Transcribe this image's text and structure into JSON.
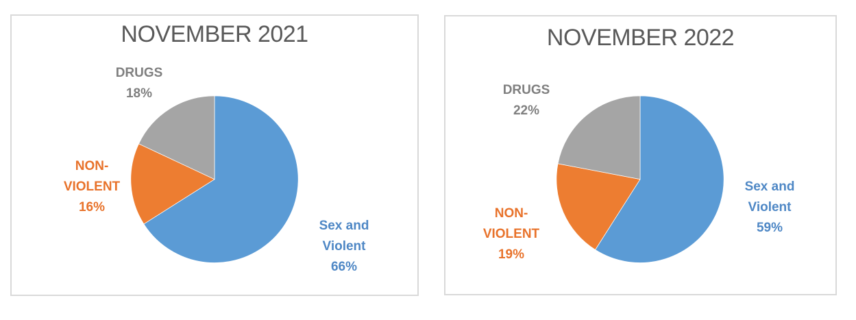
{
  "page_background": "#ffffff",
  "panel_border_color": "#d9d9d9",
  "title_color": "#595959",
  "chart_data": [
    {
      "type": "pie",
      "title": "NOVEMBER 2021",
      "categories": [
        "Sex and Violent",
        "Non-Violent",
        "Drugs"
      ],
      "values": [
        66,
        16,
        18
      ],
      "unit": "%",
      "colors": [
        "#5b9bd5",
        "#ed7d31",
        "#a5a5a5"
      ],
      "start_angle_deg": 0,
      "direction": "clockwise",
      "legend": "none",
      "labels": {
        "sexviol": {
          "text": "Sex and\nViolent\n66%",
          "color": "#4e87c5"
        },
        "nonviol": {
          "text": "NON-\nVIOLENT\n16%",
          "color": "#e8722a"
        },
        "drugs": {
          "text": "DRUGS\n18%",
          "color": "#7f7f7f"
        }
      }
    },
    {
      "type": "pie",
      "title": "NOVEMBER 2022",
      "categories": [
        "Sex and Violent",
        "Non-Violent",
        "Drugs"
      ],
      "values": [
        59,
        19,
        22
      ],
      "unit": "%",
      "colors": [
        "#5b9bd5",
        "#ed7d31",
        "#a5a5a5"
      ],
      "start_angle_deg": 0,
      "direction": "clockwise",
      "legend": "none",
      "labels": {
        "sexviol": {
          "text": "Sex and\nViolent\n59%",
          "color": "#4e87c5"
        },
        "nonviol": {
          "text": "NON-\nVIOLENT\n19%",
          "color": "#e8722a"
        },
        "drugs": {
          "text": "DRUGS\n22%",
          "color": "#7f7f7f"
        }
      }
    }
  ]
}
